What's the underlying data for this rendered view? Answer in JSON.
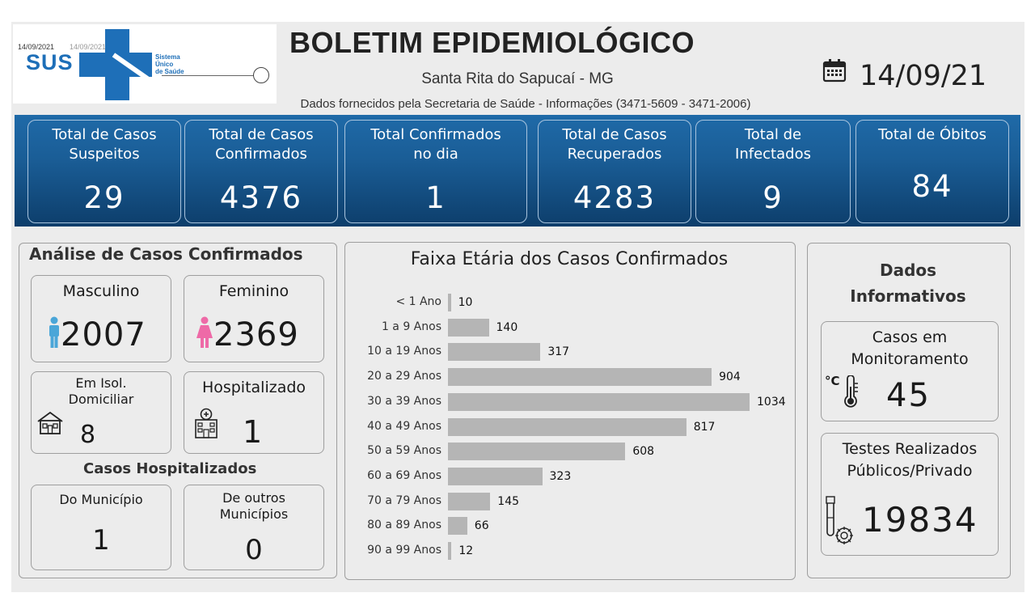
{
  "header": {
    "logo": {
      "date_left": "14/09/2021",
      "date_right": "14/09/2021",
      "brand": "SUS",
      "brand_sub": [
        "Sistema",
        "Único",
        "de Saúde"
      ]
    },
    "title": "BOLETIM EPIDEMIOLÓGICO",
    "city": "Santa Rita do Sapucaí - MG",
    "source": "Dados fornecidos pela Secretaria de Saúde - Informações (3471-5609 - 3471-2006)",
    "date": "14/09/21",
    "calendar_icon": "calendar-icon"
  },
  "kpis": [
    {
      "label_1": "Total de Casos",
      "label_2": "Suspeitos",
      "value": "29"
    },
    {
      "label_1": "Total de Casos",
      "label_2": "Confirmados",
      "value": "4376"
    },
    {
      "label_1": "Total Confirmados",
      "label_2": "no dia",
      "value": "1"
    },
    {
      "label_1": "Total de Casos",
      "label_2": "Recuperados",
      "value": "4283"
    },
    {
      "label_1": "Total de",
      "label_2": "Infectados",
      "value": "9"
    },
    {
      "label_1": "Total de Óbitos",
      "label_2": "",
      "value": "84"
    }
  ],
  "analysis": {
    "title": "Análise de Casos Confirmados",
    "male_label": "Masculino",
    "male_value": "2007",
    "female_label": "Feminino",
    "female_value": "2369",
    "isolation_label_1": "Em Isol.",
    "isolation_label_2": "Domiciliar",
    "isolation_value": "8",
    "hospitalized_label": "Hospitalizado",
    "hospitalized_value": "1",
    "hosp_section_title": "Casos Hospitalizados",
    "municipio_label": "Do Município",
    "municipio_value": "1",
    "outros_label_1": "De outros",
    "outros_label_2": "Municípios",
    "outros_value": "0",
    "colors": {
      "male": "#4aa6d8",
      "female": "#ee6aa7"
    }
  },
  "chart_data": {
    "type": "bar",
    "orientation": "horizontal",
    "title": "Faixa Etária dos Casos Confirmados",
    "categories": [
      "< 1 Ano",
      "1 a 9 Anos",
      "10 a 19 Anos",
      "20 a 29 Anos",
      "30 a 39 Anos",
      "40 a 49 Anos",
      "50 a 59 Anos",
      "60 a 69 Anos",
      "70 a 79 Anos",
      "80 a 89 Anos",
      "90 a 99 Anos"
    ],
    "values": [
      10,
      140,
      317,
      904,
      1034,
      817,
      608,
      323,
      145,
      66,
      12
    ],
    "bar_color": "#b5b5b5",
    "grid": false
  },
  "info": {
    "title_1": "Dados",
    "title_2": "Informativos",
    "monitor_label_1": "Casos em",
    "monitor_label_2": "Monitoramento",
    "monitor_value": "45",
    "tests_label_1": "Testes Realizados",
    "tests_label_2": "Públicos/Privado",
    "tests_value": "19834",
    "thermo_unit": "°C"
  }
}
